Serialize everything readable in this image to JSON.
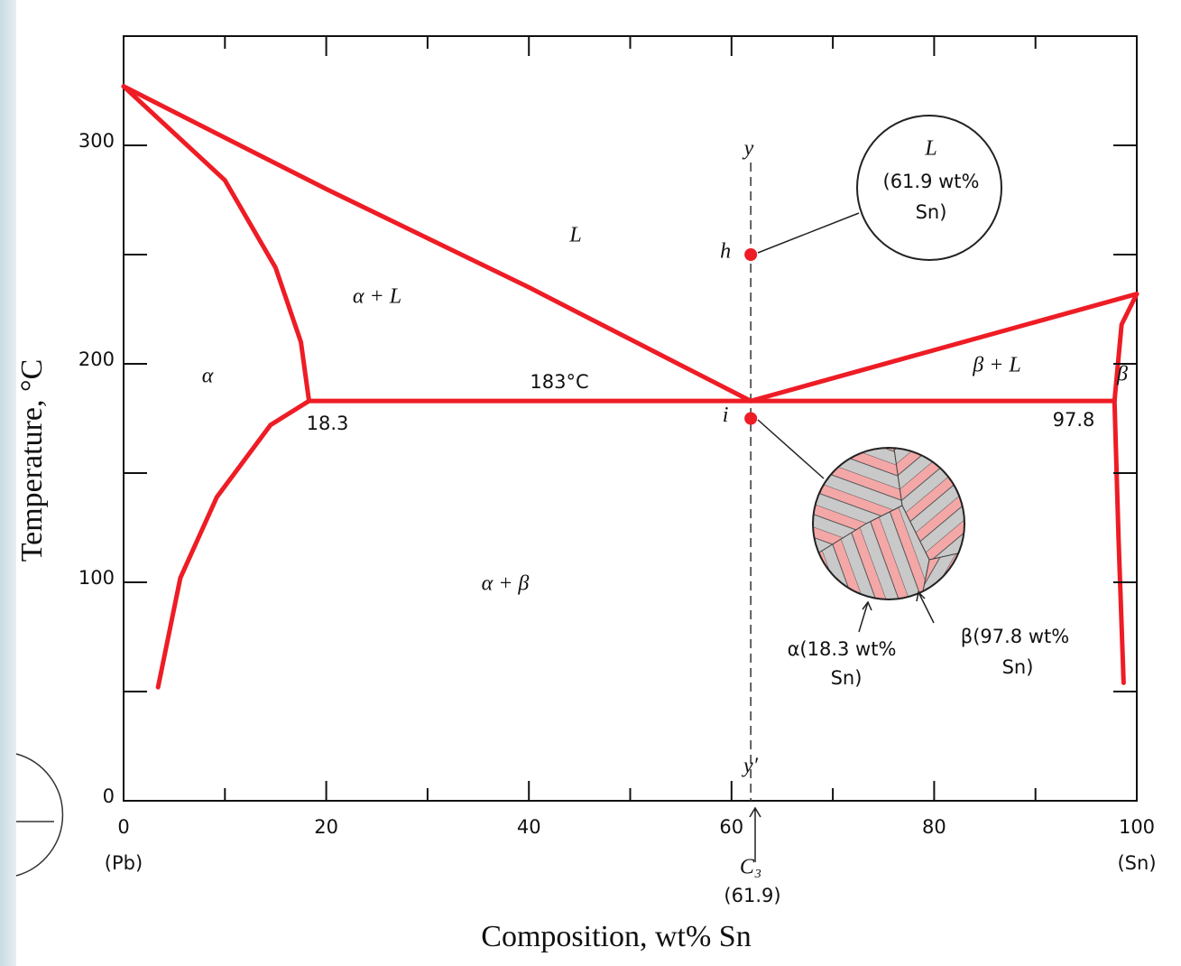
{
  "chart_data": {
    "type": "line",
    "xlabel": "Composition, wt% Sn",
    "ylabel": "Temperature, °C",
    "xlim": [
      0,
      100
    ],
    "xticks": [
      0,
      20,
      40,
      60,
      80,
      100
    ],
    "xminorticks": [
      10,
      30,
      50,
      70,
      90
    ],
    "ylim": [
      0,
      350
    ],
    "yticks": [
      0,
      100,
      200,
      300
    ],
    "yminorticks": [
      50,
      150,
      250
    ],
    "x_end_labels": [
      "(Pb)",
      "(Sn)"
    ],
    "color": "#ee1c25",
    "series": [
      {
        "x": [
          0,
          20,
          40,
          61.9
        ],
        "values": [
          327,
          280,
          235,
          183
        ]
      },
      {
        "x": [
          0,
          10,
          15,
          17.5,
          18.3
        ],
        "values": [
          327,
          284,
          244,
          210,
          183
        ]
      },
      {
        "x": [
          18.3,
          14.5,
          9.2,
          5.6,
          3.4
        ],
        "values": [
          183,
          172,
          139,
          102,
          52
        ]
      },
      {
        "x": [
          18.3,
          97.8
        ],
        "values": [
          183,
          183
        ]
      },
      {
        "x": [
          61.9,
          100
        ],
        "values": [
          183,
          232
        ]
      },
      {
        "x": [
          97.8,
          98.5,
          100
        ],
        "values": [
          183,
          218,
          232
        ]
      },
      {
        "x": [
          97.8,
          98.2,
          98.7
        ],
        "values": [
          183,
          120,
          54
        ]
      }
    ],
    "points": {
      "labels": [
        "h",
        "i"
      ],
      "x": [
        61.9,
        61.9
      ],
      "values": [
        250,
        175
      ]
    },
    "composition_line": {
      "label": "C₃",
      "value": 61.9,
      "value_label": "(61.9)",
      "top_label": "y",
      "bottom_label": "y′"
    },
    "annotations": [
      "L",
      "α + L",
      "α",
      "183°C",
      "18.3",
      "97.8",
      "β + L",
      "β",
      "α + β"
    ],
    "inset_liquid": [
      "L",
      "(61.9 wt%",
      "Sn)"
    ],
    "inset_alpha": [
      "α(18.3 wt%",
      "Sn)"
    ],
    "inset_beta": [
      "β(97.8 wt%",
      "Sn)"
    ]
  }
}
